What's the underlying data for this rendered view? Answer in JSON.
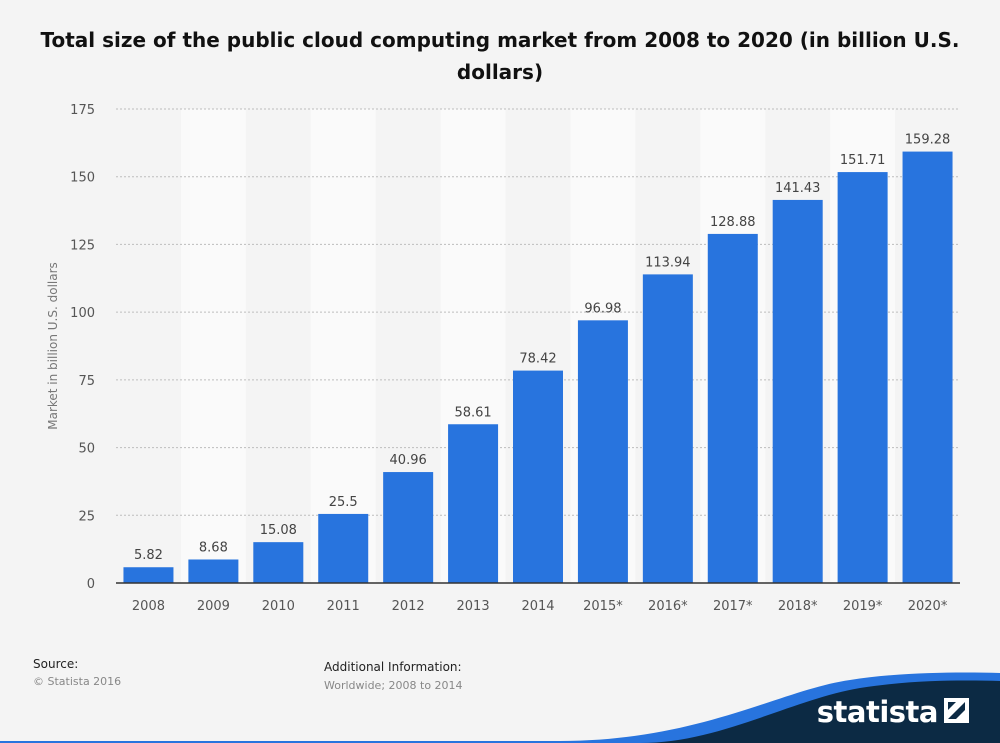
{
  "title": "Total size of the public cloud computing market from 2008 to 2020 (in billion U.S. dollars)",
  "colors": {
    "bar": "#2874de",
    "background": "#f4f4f4",
    "band": "#fafafa",
    "brand_dark": "#0c2a44",
    "brand_blue": "#2874de"
  },
  "chart_data": {
    "type": "bar",
    "title": "Total size of the public cloud computing market from 2008 to 2020 (in billion U.S. dollars)",
    "xlabel": "",
    "ylabel": "Market in billion U.S. dollars",
    "categories": [
      "2008",
      "2009",
      "2010",
      "2011",
      "2012",
      "2013",
      "2014",
      "2015*",
      "2016*",
      "2017*",
      "2018*",
      "2019*",
      "2020*"
    ],
    "values": [
      5.82,
      8.68,
      15.08,
      25.5,
      40.96,
      58.61,
      78.42,
      96.98,
      113.94,
      128.88,
      141.43,
      151.71,
      159.28
    ],
    "data_labels": [
      "5.82",
      "8.68",
      "15.08",
      "25.5",
      "40.96",
      "58.61",
      "78.42",
      "96.98",
      "113.94",
      "128.88",
      "141.43",
      "151.71",
      "159.28"
    ],
    "ylim": [
      0,
      175
    ],
    "yticks": [
      0,
      25,
      50,
      75,
      100,
      125,
      150,
      175
    ],
    "grid": true,
    "legend": "none"
  },
  "footer": {
    "source_label": "Source:",
    "source_value": "© Statista 2016",
    "info_label": "Additional Information:",
    "info_value": "Worldwide; 2008 to 2014"
  },
  "brand": {
    "name": "statista",
    "icon": "statista-logo-icon"
  }
}
